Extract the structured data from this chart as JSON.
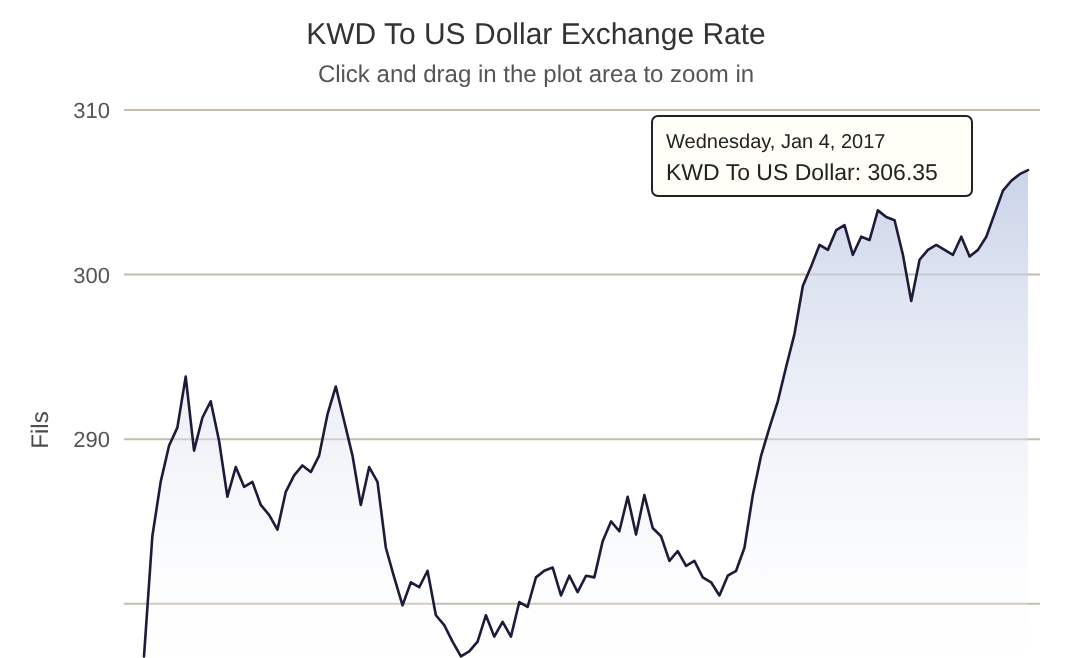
{
  "chart_data": {
    "type": "area",
    "title": "KWD To US Dollar Exchange Rate",
    "subtitle": "Click and drag in the plot area to zoom in",
    "ylabel": "Fils",
    "categories": [
      null,
      null,
      null,
      null,
      null,
      null,
      null,
      null,
      null,
      null,
      null,
      null,
      null,
      null,
      null,
      null,
      null,
      null,
      null,
      null,
      null,
      null,
      null,
      null,
      null,
      null,
      null,
      null,
      null,
      null,
      null,
      null,
      null,
      null,
      null,
      null,
      null,
      null,
      null,
      null,
      null,
      null,
      null,
      null,
      null,
      null,
      null,
      null,
      null,
      null,
      null,
      null,
      null,
      null,
      null,
      null,
      null,
      null,
      null,
      null,
      null,
      null,
      null,
      null,
      null,
      null,
      null,
      null,
      null,
      null,
      null,
      null,
      null,
      null,
      null,
      null,
      null,
      null,
      null,
      null,
      null,
      null,
      null,
      null,
      null,
      null,
      null,
      null,
      null,
      null,
      null,
      null,
      null,
      null,
      null,
      null,
      null,
      null,
      null,
      null,
      null,
      null,
      null,
      null,
      null,
      null,
      null
    ],
    "series": [
      {
        "color": "#1f1a3a",
        "values": [
          276.8,
          284.1,
          287.4,
          289.6,
          290.7,
          293.8,
          289.3,
          291.3,
          292.3,
          289.9,
          286.5,
          288.3,
          287.1,
          287.4,
          286.0,
          285.4,
          284.5,
          286.8,
          287.8,
          288.4,
          288.0,
          289.0,
          291.5,
          293.2,
          291.1,
          289.0,
          286.0,
          288.3,
          287.4,
          283.4,
          281.6,
          279.9,
          281.3,
          281.0,
          282.0,
          279.3,
          278.7,
          277.7,
          276.8,
          277.1,
          277.7,
          279.3,
          278.0,
          278.9,
          278.0,
          280.1,
          279.8,
          281.6,
          282.0,
          282.2,
          280.5,
          281.7,
          280.7,
          281.7,
          281.6,
          283.8,
          285.0,
          284.4,
          286.5,
          284.2,
          286.6,
          284.6,
          284.1,
          282.6,
          283.2,
          282.3,
          282.6,
          281.6,
          281.3,
          280.5,
          281.7,
          282.0,
          283.4,
          286.6,
          289.0,
          290.7,
          292.3,
          294.4,
          296.4,
          299.3,
          300.5,
          301.8,
          301.5,
          302.7,
          303.0,
          301.2,
          302.3,
          302.1,
          303.9,
          303.5,
          303.3,
          301.2,
          298.4,
          300.9,
          301.5,
          301.8,
          301.5,
          301.2,
          302.3,
          301.1,
          301.5,
          302.3,
          303.7,
          305.1,
          305.7,
          306.1,
          306.35
        ]
      }
    ],
    "ylim": [
      276.7,
      310
    ],
    "yticks": [
      {
        "value": 280,
        "label": null
      },
      290,
      300,
      310
    ],
    "grid": "y",
    "tick_labels": "y",
    "annotations": [
      "Wednesday, Jan 4, 2017",
      "KWD To US Dollar: 306.35"
    ]
  }
}
